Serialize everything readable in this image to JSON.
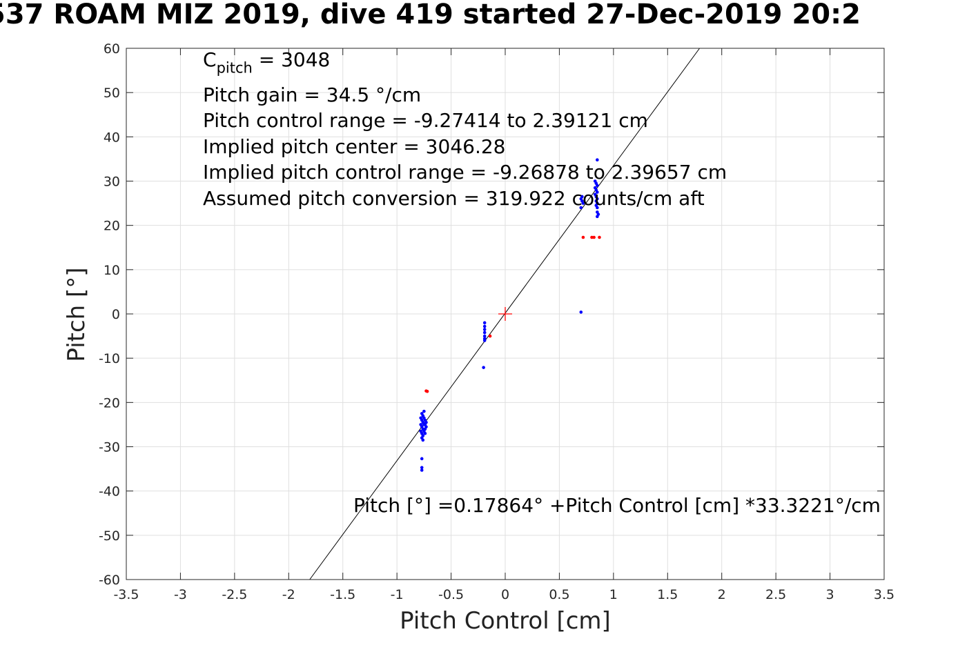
{
  "chart_data": {
    "type": "scatter",
    "title": "537 ROAM MIZ 2019, dive 419 started 27-Dec-2019 20:2",
    "xlabel": "Pitch Control [cm]",
    "ylabel": "Pitch [°]",
    "xlim": [
      -3.5,
      3.5
    ],
    "ylim": [
      -60,
      60
    ],
    "xticks": [
      -3.5,
      -3,
      -2.5,
      -2,
      -1.5,
      -1,
      -0.5,
      0,
      0.5,
      1,
      1.5,
      2,
      2.5,
      3,
      3.5
    ],
    "xtick_labels": [
      "-3.5",
      "-3",
      "-2.5",
      "-2",
      "-1.5",
      "-1",
      "-0.5",
      "0",
      "0.5",
      "1",
      "1.5",
      "2",
      "2.5",
      "3",
      "3.5"
    ],
    "yticks": [
      -60,
      -50,
      -40,
      -30,
      -20,
      -10,
      0,
      10,
      20,
      30,
      40,
      50,
      60
    ],
    "ytick_labels": [
      "-60",
      "-50",
      "-40",
      "-30",
      "-20",
      "-10",
      "0",
      "10",
      "20",
      "30",
      "40",
      "50",
      "60"
    ],
    "grid": true,
    "annotations": {
      "c_pitch_symbol": "C",
      "c_pitch_sub": "pitch",
      "c_pitch_value": " = 3048",
      "pitch_gain": "Pitch gain = 34.5 °/cm",
      "control_range": "Pitch control range = -9.27414 to 2.39121 cm",
      "implied_center": "Implied pitch center = 3046.28",
      "implied_range": "Implied pitch control range = -9.26878 to 2.39657 cm",
      "conversion": "Assumed pitch conversion = 319.922 counts/cm aft",
      "fit_equation": "Pitch [°] =0.17864° +Pitch Control [cm] *33.3221°/cm"
    },
    "fit_line": {
      "intercept": 0.17864,
      "slope": 33.3221,
      "color": "#000000"
    },
    "center_marker": {
      "x": 0,
      "y": 0,
      "color": "#ff0000"
    },
    "series": [
      {
        "color": "#0000ff",
        "points": [
          [
            -0.77,
            -22.5
          ],
          [
            -0.76,
            -23.0
          ],
          [
            -0.75,
            -23.5
          ],
          [
            -0.77,
            -24.0
          ],
          [
            -0.76,
            -24.5
          ],
          [
            -0.75,
            -25.0
          ],
          [
            -0.77,
            -25.5
          ],
          [
            -0.76,
            -26.0
          ],
          [
            -0.75,
            -26.5
          ],
          [
            -0.77,
            -27.0
          ],
          [
            -0.76,
            -27.5
          ],
          [
            -0.77,
            -28.0
          ],
          [
            -0.74,
            -24.0
          ],
          [
            -0.74,
            -25.0
          ],
          [
            -0.74,
            -26.0
          ],
          [
            -0.73,
            -25.5
          ],
          [
            -0.73,
            -24.5
          ],
          [
            -0.78,
            -26.5
          ],
          [
            -0.78,
            -25.0
          ],
          [
            -0.78,
            -23.5
          ],
          [
            -0.75,
            -22.0
          ],
          [
            -0.74,
            -27.0
          ],
          [
            -0.76,
            -28.5
          ],
          [
            -0.77,
            -32.7
          ],
          [
            -0.77,
            -34.7
          ],
          [
            -0.77,
            -35.3
          ],
          [
            -0.19,
            -2.0
          ],
          [
            -0.19,
            -2.8
          ],
          [
            -0.19,
            -3.5
          ],
          [
            -0.19,
            -4.2
          ],
          [
            -0.19,
            -5.0
          ],
          [
            -0.19,
            -5.6
          ],
          [
            -0.19,
            -6.0
          ],
          [
            -0.2,
            -12.1
          ],
          [
            0.7,
            0.4
          ],
          [
            0.85,
            34.8
          ],
          [
            0.83,
            30.0
          ],
          [
            0.84,
            29.5
          ],
          [
            0.85,
            29.0
          ],
          [
            0.83,
            28.5
          ],
          [
            0.84,
            28.0
          ],
          [
            0.85,
            27.5
          ],
          [
            0.83,
            27.0
          ],
          [
            0.84,
            26.5
          ],
          [
            0.85,
            26.0
          ],
          [
            0.84,
            25.5
          ],
          [
            0.85,
            25.0
          ],
          [
            0.84,
            24.5
          ],
          [
            0.85,
            24.0
          ],
          [
            0.85,
            23.0
          ],
          [
            0.86,
            22.5
          ],
          [
            0.85,
            22.0
          ],
          [
            0.7,
            26.0
          ],
          [
            0.71,
            25.5
          ],
          [
            0.72,
            25.0
          ],
          [
            0.7,
            24.0
          ],
          [
            0.71,
            26.5
          ]
        ]
      },
      {
        "color": "#ff0000",
        "points": [
          [
            -0.72,
            -17.5
          ],
          [
            -0.73,
            -17.4
          ],
          [
            -0.14,
            -5.0
          ],
          [
            0.72,
            17.3
          ],
          [
            0.8,
            17.3
          ],
          [
            0.82,
            17.3
          ],
          [
            0.87,
            17.3
          ]
        ]
      }
    ]
  }
}
